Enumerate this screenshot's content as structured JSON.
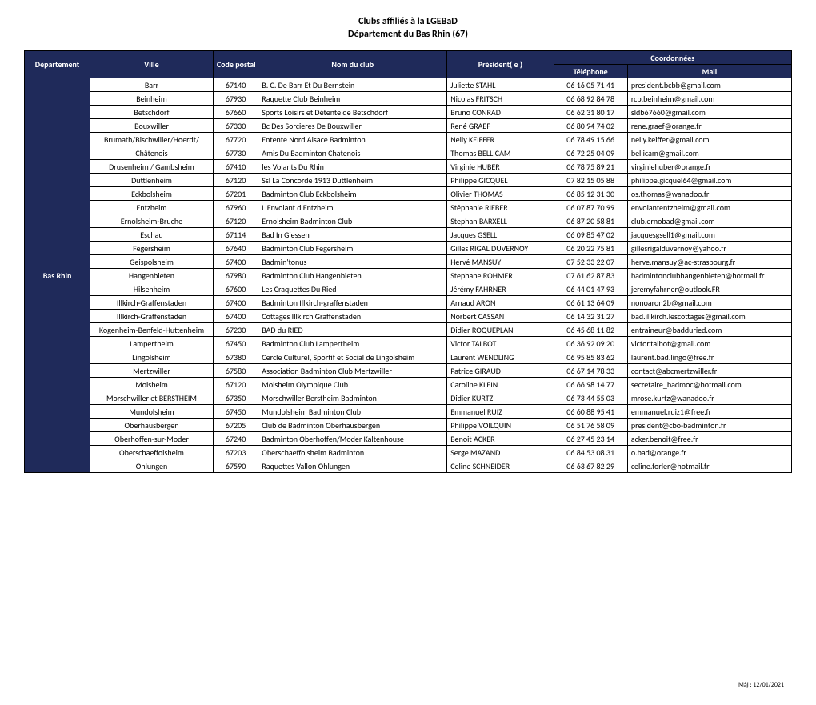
{
  "title_line1": "Clubs affiliés à la LGEBaD",
  "title_line2": "Département du Bas Rhin (67)",
  "colors": {
    "header_bg": "#1f2a5a",
    "dept_bg": "#1f2a5a"
  },
  "headers": {
    "departement": "Département",
    "ville": "Ville",
    "code_postal": "Code postal",
    "nom_club": "Nom du club",
    "president": "Président( e )",
    "coordonnees": "Coordonnées",
    "telephone": "Téléphone",
    "mail": "Mail"
  },
  "dept_label": "Bas Rhin",
  "rows": [
    {
      "ville": "Barr",
      "cp": "67140",
      "club": "B. C. De Barr Et Du Bernstein",
      "pres": "Juliette STAHL",
      "tel": "06 16 05 71 41",
      "mail": "president.bcbb@gmail.com"
    },
    {
      "ville": "Beinheim",
      "cp": "67930",
      "club": "Raquette Club Beinheim",
      "pres": "Nicolas FRITSCH",
      "tel": "06 68 92 84 78",
      "mail": "rcb.beinheim@gmail.com"
    },
    {
      "ville": "Betschdorf",
      "cp": "67660",
      "club": "Sports Loisirs et Détente de Betschdorf",
      "pres": "Bruno CONRAD",
      "tel": "06 62 31 80 17",
      "mail": "sldb67660@gmail.com"
    },
    {
      "ville": "Bouxwiller",
      "cp": "67330",
      "club": "Bc Des Sorcieres De Bouxwiller",
      "pres": "René GRAEF",
      "tel": "06 80 94 74 02",
      "mail": "rene.graef@orange.fr"
    },
    {
      "ville": "Brumath/Bischwiller/Hoerdt/",
      "cp": "67720",
      "club": "Entente Nord Alsace Badminton",
      "pres": "Nelly KEIFFER",
      "tel": "06 78 49 15 66",
      "mail": "nelly.keiffer@gmail.com"
    },
    {
      "ville": "Châtenois",
      "cp": "67730",
      "club": "Amis Du Badminton Chatenois",
      "pres": "Thomas BELLICAM",
      "tel": "06 72 25 04 09",
      "mail": "bellicam@gmail.com"
    },
    {
      "ville": "Drusenheim / Gambsheim",
      "cp": "67410",
      "club": "les Volants Du Rhin",
      "pres": "Virginie HUBER",
      "tel": "06 78 75 89 21",
      "mail": "virginiehuber@orange.fr"
    },
    {
      "ville": "Duttlenheim",
      "cp": "67120",
      "club": "Ssl La Concorde 1913 Duttlenheim",
      "pres": "Philippe GICQUEL",
      "tel": "07 82 15 05 88",
      "mail": "philippe.gicquel64@gmail.com"
    },
    {
      "ville": "Eckbolsheim",
      "cp": "67201",
      "club": "Badminton Club Eckbolsheim",
      "pres": "Olivier THOMAS",
      "tel": "06 85 12 31 30",
      "mail": "os.thomas@wanadoo.fr"
    },
    {
      "ville": "Entzheim",
      "cp": "67960",
      "club": "L'Envolant d'Entzheim",
      "pres": "Stéphanie RIEBER",
      "tel": "06 07 87 70 99",
      "mail": "envolantentzheim@gmail.com"
    },
    {
      "ville": "Ernolsheim-Bruche",
      "cp": "67120",
      "club": "Ernolsheim Badminton Club",
      "pres": "Stephan BARXELL",
      "tel": "06 87 20 58 81",
      "mail": "club.ernobad@gmail.com"
    },
    {
      "ville": "Eschau",
      "cp": "67114",
      "club": "Bad In Giessen",
      "pres": "Jacques GSELL",
      "tel": "06 09 85 47 02",
      "mail": "jacquesgsell1@gmail.com"
    },
    {
      "ville": "Fegersheim",
      "cp": "67640",
      "club": "Badminton Club Fegersheim",
      "pres": "Gilles RIGAL DUVERNOY",
      "tel": "06 20 22 75 81",
      "mail": "gillesrigalduvernoy@yahoo.fr"
    },
    {
      "ville": "Geispolsheim",
      "cp": "67400",
      "club": "Badmin'tonus",
      "pres": "Hervé MANSUY",
      "tel": "07 52 33 22 07",
      "mail": "herve.mansuy@ac-strasbourg.fr"
    },
    {
      "ville": "Hangenbieten",
      "cp": "67980",
      "club": "Badminton Club Hangenbieten",
      "pres": "Stephane ROHMER",
      "tel": "07 61 62 87 83",
      "mail": "badmintonclubhangenbieten@hotmail.fr"
    },
    {
      "ville": "Hilsenheim",
      "cp": "67600",
      "club": "Les Craquettes Du Ried",
      "pres": "Jérémy FAHRNER",
      "tel": "06 44 01 47 93",
      "mail": "jeremyfahrner@outlook.FR"
    },
    {
      "ville": "Illkirch-Graffenstaden",
      "cp": "67400",
      "club": "Badminton Illkirch-graffenstaden",
      "pres": "Arnaud ARON",
      "tel": "06 61 13 64 09",
      "mail": "nonoaron2b@gmail.com"
    },
    {
      "ville": "Illkirch-Graffenstaden",
      "cp": "67400",
      "club": "Cottages Illkirch Graffenstaden",
      "pres": "Norbert CASSAN",
      "tel": "06 14 32 31 27",
      "mail": "bad.illkirch.lescottages@gmail.com"
    },
    {
      "ville": "Kogenheim-Benfeld-Huttenheim",
      "cp": "67230",
      "club": "BAD du RIED",
      "pres": "Didier ROQUEPLAN",
      "tel": "06 45 68 11 82",
      "mail": "entraineur@badduried.com"
    },
    {
      "ville": "Lampertheim",
      "cp": "67450",
      "club": "Badminton Club Lampertheim",
      "pres": "Victor TALBOT",
      "tel": "06 36 92 09 20",
      "mail": "victor.talbot@gmail.com"
    },
    {
      "ville": "Lingolsheim",
      "cp": "67380",
      "club": "Cercle Culturel, Sportif et Social de Lingolsheim",
      "pres": "Laurent WENDLING",
      "tel": "06 95 85 83 62",
      "mail": "laurent.bad.lingo@free.fr"
    },
    {
      "ville": "Mertzwiller",
      "cp": "67580",
      "club": "Association Badminton Club Mertzwiller",
      "pres": "Patrice GIRAUD",
      "tel": "06 67 14 78 33",
      "mail": "contact@abcmertzwiller.fr"
    },
    {
      "ville": "Molsheim",
      "cp": "67120",
      "club": "Molsheim Olympique Club",
      "pres": "Caroline KLEIN",
      "tel": "06 66 98 14 77",
      "mail": "secretaire_badmoc@hotmail.com"
    },
    {
      "ville": "Morschwiller et BERSTHEIM",
      "cp": "67350",
      "club": "Morschwiller Berstheim Badminton",
      "pres": "Didier KURTZ",
      "tel": "06 73 44 55 03",
      "mail": "mrose.kurtz@wanadoo.fr"
    },
    {
      "ville": "Mundolsheim",
      "cp": "67450",
      "club": "Mundolsheim Badminton Club",
      "pres": "Emmanuel RUIZ",
      "tel": "06 60 88 95 41",
      "mail": "emmanuel.ruiz1@free.fr"
    },
    {
      "ville": "Oberhausbergen",
      "cp": "67205",
      "club": "Club de Badminton Oberhausbergen",
      "pres": "Philippe VOILQUIN",
      "tel": "06 51 76 58 09",
      "mail": "president@cbo-badminton.fr"
    },
    {
      "ville": "Oberhoffen-sur-Moder",
      "cp": "67240",
      "club": "Badminton Oberhoffen/Moder Kaltenhouse",
      "pres": "Benoit ACKER",
      "tel": "06 27 45 23 14",
      "mail": "acker.benoit@free.fr"
    },
    {
      "ville": "Oberschaeffolsheim",
      "cp": "67203",
      "club": "Oberschaeffolsheim Badminton",
      "pres": "Serge MAZAND",
      "tel": "06 84 53 08 31",
      "mail": "o.bad@orange.fr"
    },
    {
      "ville": "Ohlungen",
      "cp": "67590",
      "club": "Raquettes Vallon Ohlungen",
      "pres": "Celine SCHNEIDER",
      "tel": "06 63 67 82 29",
      "mail": "celine.forler@hotmail.fr"
    }
  ],
  "footer": "Màj : 12/01/2021"
}
